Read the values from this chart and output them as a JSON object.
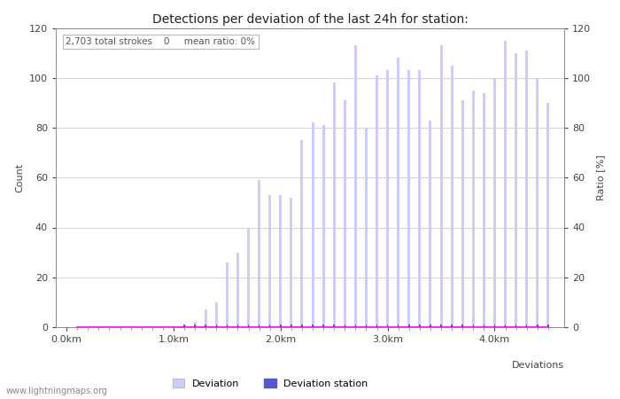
{
  "title": "Detections per deviation of the last 24h for station:",
  "subtitle": "2,703 total strokes    0     mean ratio: 0%",
  "xlabel": "Deviations",
  "ylabel_left": "Count",
  "ylabel_right": "Ratio [%]",
  "watermark": "www.lightningmaps.org",
  "bar_width": 0.025,
  "x_tick_labels": [
    "0.0km",
    "1.0km",
    "2.0km",
    "3.0km",
    "4.0km"
  ],
  "x_tick_positions": [
    0.0,
    1.0,
    2.0,
    3.0,
    4.0
  ],
  "ylim": [
    0,
    120
  ],
  "xlim": [
    -0.1,
    4.65
  ],
  "deviation_color": "#ccccff",
  "station_color": "#5555cc",
  "percentage_color": "#dd00dd",
  "bar_positions": [
    0.1,
    0.2,
    0.3,
    0.4,
    0.5,
    0.6,
    0.7,
    0.8,
    0.9,
    1.0,
    1.1,
    1.2,
    1.3,
    1.4,
    1.5,
    1.6,
    1.7,
    1.8,
    1.9,
    2.0,
    2.1,
    2.2,
    2.3,
    2.4,
    2.5,
    2.6,
    2.7,
    2.8,
    2.9,
    3.0,
    3.1,
    3.2,
    3.3,
    3.4,
    3.5,
    3.6,
    3.7,
    3.8,
    3.9,
    4.0,
    4.1,
    4.2,
    4.3,
    4.4,
    4.5
  ],
  "deviation_heights": [
    0,
    0,
    0,
    0,
    0,
    0,
    0,
    0,
    0,
    0,
    1,
    2,
    7,
    10,
    26,
    30,
    40,
    59,
    53,
    53,
    52,
    75,
    82,
    81,
    98,
    91,
    113,
    80,
    101,
    103,
    108,
    103,
    103,
    83,
    113,
    105,
    91,
    95,
    94,
    100,
    115,
    110,
    111,
    100,
    90
  ],
  "station_heights": [
    0,
    0,
    0,
    0,
    0,
    0,
    0,
    0,
    0,
    0,
    1,
    1,
    1,
    1,
    1,
    1,
    1,
    1,
    1,
    1,
    1,
    1,
    1,
    1,
    1,
    1,
    1,
    1,
    1,
    1,
    1,
    1,
    1,
    1,
    1,
    1,
    1,
    1,
    1,
    1,
    1,
    1,
    1,
    1,
    1
  ],
  "percentage_values": [
    0,
    0,
    0,
    0,
    0,
    0,
    0,
    0,
    0,
    0,
    0,
    0,
    0,
    0,
    0,
    0,
    0,
    0,
    0,
    0,
    0,
    0,
    0,
    0,
    0,
    0,
    0,
    0,
    0,
    0,
    0,
    0,
    0,
    0,
    0,
    0,
    0,
    0,
    0,
    0,
    0,
    0,
    0,
    0,
    0
  ]
}
